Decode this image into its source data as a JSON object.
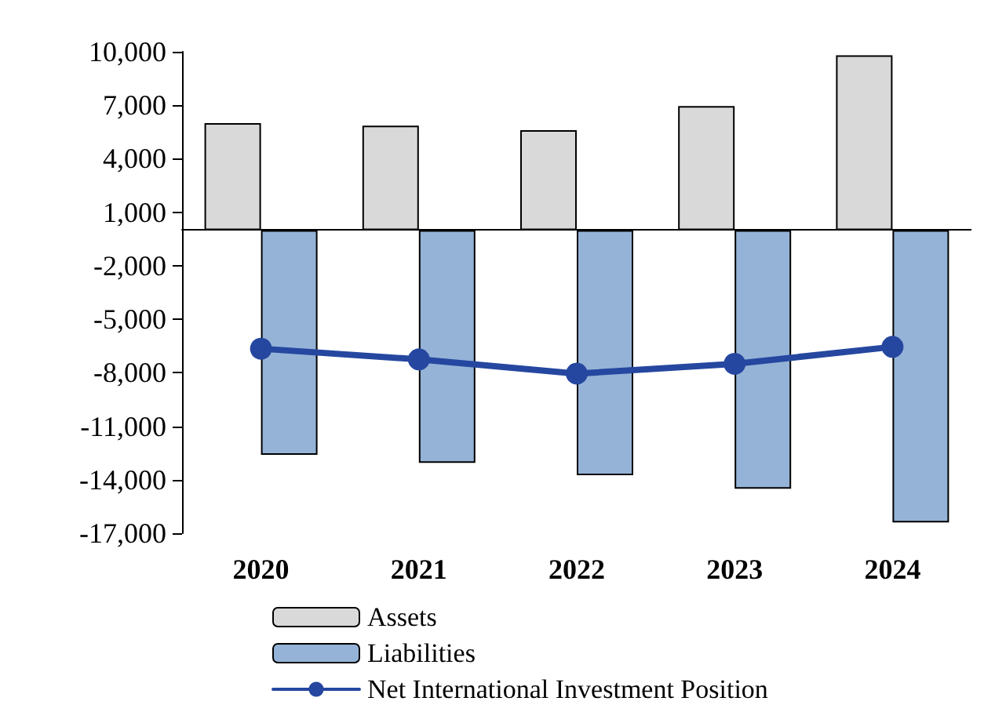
{
  "chart_data": {
    "type": "bar",
    "categories": [
      "2020",
      "2021",
      "2022",
      "2023",
      "2024"
    ],
    "series": [
      {
        "name": "Assets",
        "color": "#d9d9d9",
        "values": [
          6000,
          5850,
          5600,
          6950,
          9800
        ]
      },
      {
        "name": "Liabilities",
        "color": "#95b3d7",
        "values": [
          -12600,
          -13050,
          -13750,
          -14500,
          -16400
        ]
      },
      {
        "name": "Net International Investment Position",
        "type": "line",
        "color": "#2547a0",
        "values": [
          -6650,
          -7250,
          -8050,
          -7500,
          -6550
        ]
      }
    ],
    "ylim": [
      -17000,
      10000
    ],
    "yticks": [
      {
        "value": -17000,
        "label": "-17,000"
      },
      {
        "value": -14000,
        "label": "-14,000"
      },
      {
        "value": -11000,
        "label": "-11,000"
      },
      {
        "value": -8000,
        "label": "-8,000"
      },
      {
        "value": -5000,
        "label": "-5,000"
      },
      {
        "value": -2000,
        "label": "-2,000"
      },
      {
        "value": 1000,
        "label": "1,000"
      },
      {
        "value": 4000,
        "label": "4,000"
      },
      {
        "value": 7000,
        "label": "7,000"
      },
      {
        "value": 10000,
        "label": "10,000"
      }
    ],
    "grid": false,
    "legend": "bottom",
    "marker": "circle",
    "line_style": "solid"
  }
}
